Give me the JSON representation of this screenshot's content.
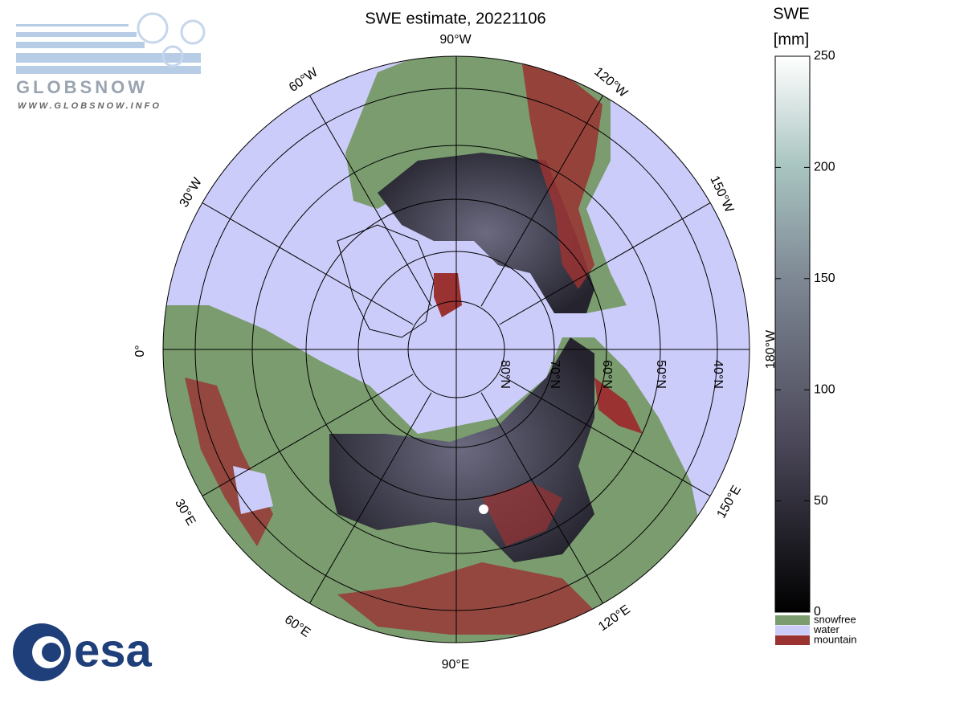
{
  "header": {
    "title": "SWE estimate, 20221106"
  },
  "logos": {
    "globsnow": "GLOBSNOW",
    "globsnow_url": "WWW.GLOBSNOW.INFO",
    "esa": "esa"
  },
  "map": {
    "longitude_labels": [
      "90°W",
      "120°W",
      "150°W",
      "180°W",
      "150°E",
      "120°E",
      "90°E",
      "60°E",
      "30°E",
      "0°",
      "30°W",
      "60°W"
    ],
    "latitude_labels": [
      "80°N",
      "70°N",
      "60°N",
      "50°N",
      "40°N"
    ]
  },
  "colorbar": {
    "title": "SWE",
    "unit": "[mm]",
    "range": [
      0,
      250
    ],
    "ticks": [
      0,
      50,
      100,
      150,
      200,
      250
    ]
  },
  "legend": [
    {
      "label": "snowfree",
      "color": "#7a9c6e"
    },
    {
      "label": "water",
      "color": "#ccccfa"
    },
    {
      "label": "mountain",
      "color": "#9a3232"
    }
  ]
}
